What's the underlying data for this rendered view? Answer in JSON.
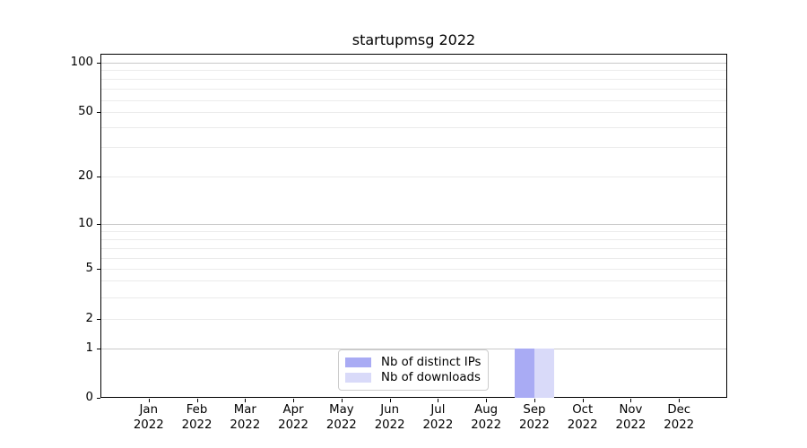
{
  "figure": {
    "title": "startupmsg 2022",
    "background_color": "#ffffff",
    "text_color": "#000000"
  },
  "chart_data": {
    "type": "bar",
    "title": "startupmsg 2022",
    "categories": [
      "Jan 2022",
      "Feb 2022",
      "Mar 2022",
      "Apr 2022",
      "May 2022",
      "Jun 2022",
      "Jul 2022",
      "Aug 2022",
      "Sep 2022",
      "Oct 2022",
      "Nov 2022",
      "Dec 2022"
    ],
    "x_tick_month_line": [
      "Jan",
      "Feb",
      "Mar",
      "Apr",
      "May",
      "Jun",
      "Jul",
      "Aug",
      "Sep",
      "Oct",
      "Nov",
      "Dec"
    ],
    "x_tick_year_line": "2022",
    "series": [
      {
        "name": "Nb of distinct IPs",
        "color": "#a9abf4",
        "values": [
          0,
          0,
          0,
          0,
          0,
          0,
          0,
          0,
          1,
          0,
          0,
          0
        ]
      },
      {
        "name": "Nb of downloads",
        "color": "#d9daf9",
        "values": [
          0,
          0,
          0,
          0,
          0,
          0,
          0,
          0,
          1,
          0,
          0,
          0
        ]
      }
    ],
    "y_axis": {
      "scale": "log-like",
      "tick_labels": [
        "0",
        "1",
        "2",
        "5",
        "10",
        "20",
        "50",
        "100"
      ],
      "tick_values": [
        0,
        1,
        2,
        5,
        10,
        20,
        50,
        100
      ],
      "range": [
        0,
        100
      ],
      "major_grid_values": [
        1,
        10,
        100
      ],
      "minor_grid_values": [
        2,
        3,
        4,
        5,
        6,
        7,
        8,
        9,
        20,
        30,
        40,
        50,
        60,
        70,
        80,
        90
      ]
    },
    "grid": {
      "horizontal": true,
      "vertical": false,
      "major_color": "#c9c9c9",
      "minor_color": "#ebebeb"
    },
    "legend": {
      "position": "lower center",
      "entries": [
        "Nb of distinct IPs",
        "Nb of downloads"
      ]
    }
  }
}
